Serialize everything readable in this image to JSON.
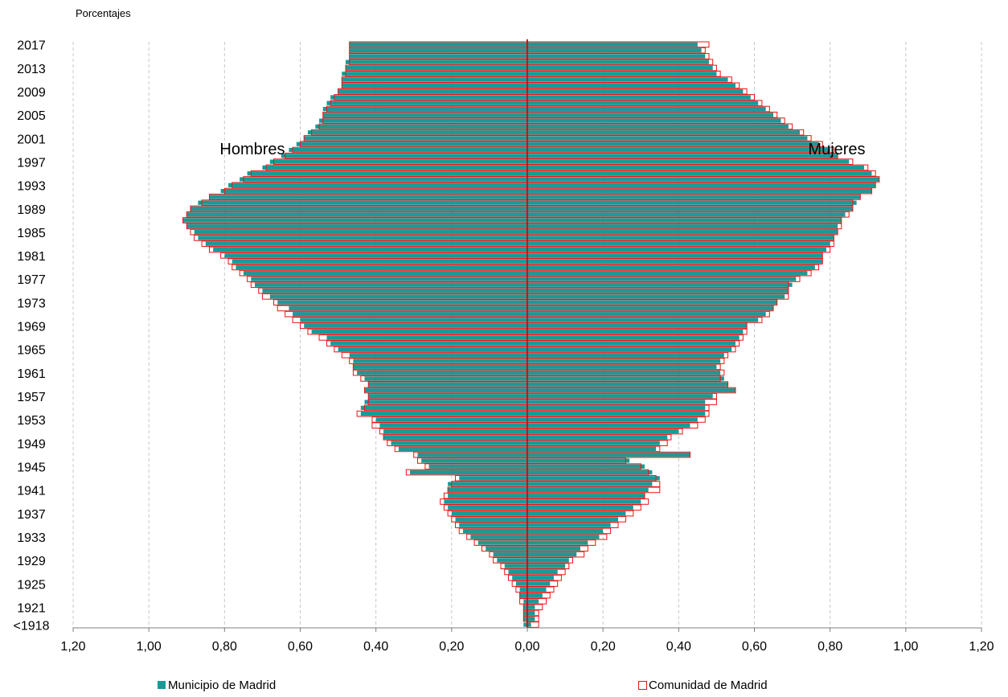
{
  "chart_data": {
    "type": "bar",
    "orientation": "horizontal-pyramid",
    "unit_label": "Porcentajes",
    "left_side_label": "Hombres",
    "right_side_label": "Mujeres",
    "x_tick_labels": [
      "1,20",
      "1,00",
      "0,80",
      "0,60",
      "0,40",
      "0,20",
      "0,00",
      "0,20",
      "0,40",
      "0,60",
      "0,80",
      "1,00",
      "1,20"
    ],
    "xlim": [
      -1.2,
      1.2
    ],
    "y_start": 1918,
    "y_end": 2017,
    "y_tick_labels": [
      "<1918",
      "1921",
      "1925",
      "1929",
      "1933",
      "1937",
      "1941",
      "1945",
      "1949",
      "1953",
      "1957",
      "1961",
      "1965",
      "1969",
      "1973",
      "1977",
      "1981",
      "1985",
      "1989",
      "1993",
      "1997",
      "2001",
      "2005",
      "2009",
      "2013",
      "2017"
    ],
    "grid": "vertical-dashed",
    "legend_position": "bottom",
    "series": [
      {
        "name": "Municipio de Madrid",
        "color": "#1a9a96",
        "style": "filled",
        "men": [
          0.01,
          0.01,
          0.01,
          0.01,
          0.01,
          0.02,
          0.02,
          0.03,
          0.04,
          0.05,
          0.06,
          0.08,
          0.09,
          0.11,
          0.13,
          0.15,
          0.17,
          0.18,
          0.19,
          0.2,
          0.21,
          0.22,
          0.21,
          0.21,
          0.21,
          0.18,
          0.31,
          0.26,
          0.28,
          0.29,
          0.34,
          0.36,
          0.38,
          0.38,
          0.39,
          0.4,
          0.44,
          0.44,
          0.43,
          0.42,
          0.43,
          0.42,
          0.43,
          0.45,
          0.46,
          0.46,
          0.47,
          0.5,
          0.52,
          0.53,
          0.57,
          0.59,
          0.6,
          0.62,
          0.63,
          0.66,
          0.68,
          0.7,
          0.72,
          0.73,
          0.75,
          0.77,
          0.78,
          0.8,
          0.83,
          0.85,
          0.87,
          0.88,
          0.9,
          0.91,
          0.9,
          0.89,
          0.87,
          0.84,
          0.81,
          0.79,
          0.76,
          0.74,
          0.7,
          0.68,
          0.65,
          0.63,
          0.61,
          0.59,
          0.58,
          0.56,
          0.55,
          0.54,
          0.54,
          0.53,
          0.52,
          0.5,
          0.49,
          0.49,
          0.49,
          0.48,
          0.48,
          0.47,
          0.47,
          0.47
        ],
        "women": [
          0.01,
          0.02,
          0.02,
          0.02,
          0.03,
          0.04,
          0.05,
          0.06,
          0.07,
          0.08,
          0.1,
          0.11,
          0.13,
          0.14,
          0.16,
          0.19,
          0.2,
          0.22,
          0.24,
          0.26,
          0.28,
          0.3,
          0.31,
          0.32,
          0.33,
          0.35,
          0.33,
          0.31,
          0.27,
          0.43,
          0.34,
          0.35,
          0.37,
          0.4,
          0.43,
          0.45,
          0.47,
          0.47,
          0.47,
          0.49,
          0.55,
          0.53,
          0.52,
          0.51,
          0.5,
          0.51,
          0.52,
          0.54,
          0.55,
          0.56,
          0.57,
          0.58,
          0.61,
          0.63,
          0.65,
          0.66,
          0.68,
          0.69,
          0.7,
          0.71,
          0.74,
          0.76,
          0.78,
          0.78,
          0.79,
          0.8,
          0.81,
          0.82,
          0.82,
          0.83,
          0.84,
          0.86,
          0.87,
          0.88,
          0.91,
          0.92,
          0.93,
          0.91,
          0.89,
          0.85,
          0.82,
          0.8,
          0.77,
          0.74,
          0.72,
          0.69,
          0.67,
          0.65,
          0.63,
          0.61,
          0.59,
          0.57,
          0.55,
          0.53,
          0.5,
          0.49,
          0.48,
          0.47,
          0.46,
          0.45
        ]
      },
      {
        "name": "Comunidad de Madrid",
        "color": "#ee1111",
        "style": "outline",
        "men": [
          0.0,
          0.01,
          0.01,
          0.01,
          0.02,
          0.02,
          0.03,
          0.04,
          0.05,
          0.06,
          0.07,
          0.09,
          0.1,
          0.12,
          0.14,
          0.16,
          0.18,
          0.19,
          0.2,
          0.21,
          0.22,
          0.23,
          0.22,
          0.21,
          0.2,
          0.19,
          0.32,
          0.27,
          0.29,
          0.3,
          0.35,
          0.37,
          0.38,
          0.39,
          0.41,
          0.41,
          0.45,
          0.43,
          0.42,
          0.42,
          0.43,
          0.42,
          0.44,
          0.46,
          0.46,
          0.47,
          0.49,
          0.51,
          0.53,
          0.55,
          0.58,
          0.6,
          0.62,
          0.64,
          0.66,
          0.67,
          0.7,
          0.71,
          0.73,
          0.74,
          0.76,
          0.78,
          0.79,
          0.81,
          0.84,
          0.86,
          0.88,
          0.89,
          0.9,
          0.91,
          0.9,
          0.89,
          0.86,
          0.84,
          0.8,
          0.78,
          0.75,
          0.73,
          0.69,
          0.67,
          0.64,
          0.62,
          0.6,
          0.59,
          0.57,
          0.55,
          0.54,
          0.54,
          0.53,
          0.52,
          0.51,
          0.5,
          0.49,
          0.49,
          0.48,
          0.48,
          0.47,
          0.47,
          0.47,
          0.47
        ],
        "women": [
          0.03,
          0.03,
          0.03,
          0.04,
          0.05,
          0.06,
          0.07,
          0.08,
          0.09,
          0.1,
          0.11,
          0.12,
          0.15,
          0.16,
          0.18,
          0.21,
          0.22,
          0.24,
          0.26,
          0.28,
          0.3,
          0.32,
          0.31,
          0.35,
          0.35,
          0.34,
          0.32,
          0.3,
          0.26,
          0.43,
          0.35,
          0.37,
          0.38,
          0.41,
          0.45,
          0.47,
          0.48,
          0.48,
          0.5,
          0.5,
          0.55,
          0.53,
          0.51,
          0.52,
          0.51,
          0.52,
          0.53,
          0.55,
          0.56,
          0.57,
          0.58,
          0.58,
          0.62,
          0.64,
          0.65,
          0.66,
          0.69,
          0.69,
          0.69,
          0.72,
          0.75,
          0.77,
          0.78,
          0.78,
          0.8,
          0.81,
          0.81,
          0.82,
          0.83,
          0.83,
          0.85,
          0.86,
          0.86,
          0.88,
          0.91,
          0.92,
          0.93,
          0.92,
          0.9,
          0.86,
          0.82,
          0.81,
          0.78,
          0.75,
          0.73,
          0.7,
          0.68,
          0.66,
          0.64,
          0.62,
          0.6,
          0.58,
          0.56,
          0.54,
          0.51,
          0.5,
          0.49,
          0.48,
          0.47,
          0.48
        ]
      }
    ]
  }
}
